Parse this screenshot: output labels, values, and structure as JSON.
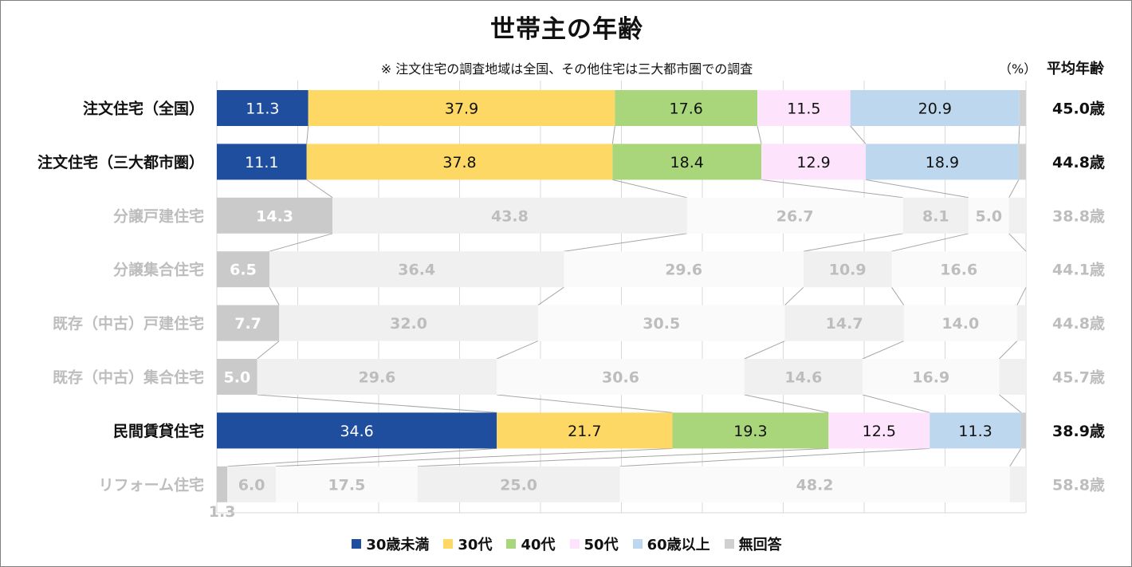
{
  "chart_data": {
    "type": "bar",
    "orientation": "horizontal",
    "stacked": true,
    "title": "世帯主の年齢",
    "subtitle": "※ 注文住宅の調査地域は全国、その他住宅は三大都市圏での調査",
    "unit_label": "（%）",
    "avg_header": "平均年齢",
    "xlim": [
      0,
      100
    ],
    "categories": [
      "注文住宅（全国）",
      "注文住宅（三大都市圏）",
      "分譲戸建住宅",
      "分譲集合住宅",
      "既存（中古）戸建住宅",
      "既存（中古）集合住宅",
      "民間賃貸住宅",
      "リフォーム住宅"
    ],
    "highlighted": [
      true,
      true,
      false,
      false,
      false,
      false,
      true,
      false
    ],
    "series": [
      {
        "name": "30歳未満",
        "color": "#1f4e9e",
        "values": [
          11.3,
          11.1,
          14.3,
          6.5,
          7.7,
          5.0,
          34.6,
          1.3
        ]
      },
      {
        "name": "30代",
        "color": "#fdd865",
        "values": [
          37.9,
          37.8,
          43.8,
          36.4,
          32.0,
          29.6,
          21.7,
          6.0
        ]
      },
      {
        "name": "40代",
        "color": "#a9d67b",
        "values": [
          17.6,
          18.4,
          26.7,
          29.6,
          30.5,
          30.6,
          19.3,
          17.5
        ]
      },
      {
        "name": "50代",
        "color": "#fde3fb",
        "values": [
          11.5,
          12.9,
          8.1,
          10.9,
          14.7,
          14.6,
          12.5,
          25.0
        ]
      },
      {
        "name": "60歳以上",
        "color": "#bdd7ee",
        "values": [
          20.9,
          18.9,
          5.0,
          16.6,
          14.0,
          16.9,
          11.3,
          48.2
        ]
      },
      {
        "name": "無回答",
        "color": "#d0d0d0",
        "values": [
          0.8,
          0.9,
          2.1,
          0.0,
          1.1,
          3.3,
          0.6,
          2.0
        ]
      }
    ],
    "value_labels": [
      [
        "11.3",
        "37.9",
        "17.6",
        "11.5",
        "20.9",
        ""
      ],
      [
        "11.1",
        "37.8",
        "18.4",
        "12.9",
        "18.9",
        ""
      ],
      [
        "14.3",
        "43.8",
        "26.7",
        "8.1",
        "5.0",
        ""
      ],
      [
        "6.5",
        "36.4",
        "29.6",
        "10.9",
        "16.6",
        ""
      ],
      [
        "7.7",
        "32.0",
        "30.5",
        "14.7",
        "14.0",
        ""
      ],
      [
        "5.0",
        "29.6",
        "30.6",
        "14.6",
        "16.9",
        ""
      ],
      [
        "34.6",
        "21.7",
        "19.3",
        "12.5",
        "11.3",
        ""
      ],
      [
        "1.3",
        "6.0",
        "17.5",
        "25.0",
        "48.2",
        ""
      ]
    ],
    "average_age": [
      "45.0歳",
      "44.8歳",
      "38.8歳",
      "44.1歳",
      "44.8歳",
      "45.7歳",
      "38.9歳",
      "58.8歳"
    ],
    "muted_colors": {
      "first_segment": "#cacaca",
      "alternate": [
        "#f0f0f0",
        "#fafafa"
      ],
      "text": "#bdbdbd",
      "first_text": "#ffffff"
    },
    "legend_position": "bottom"
  }
}
